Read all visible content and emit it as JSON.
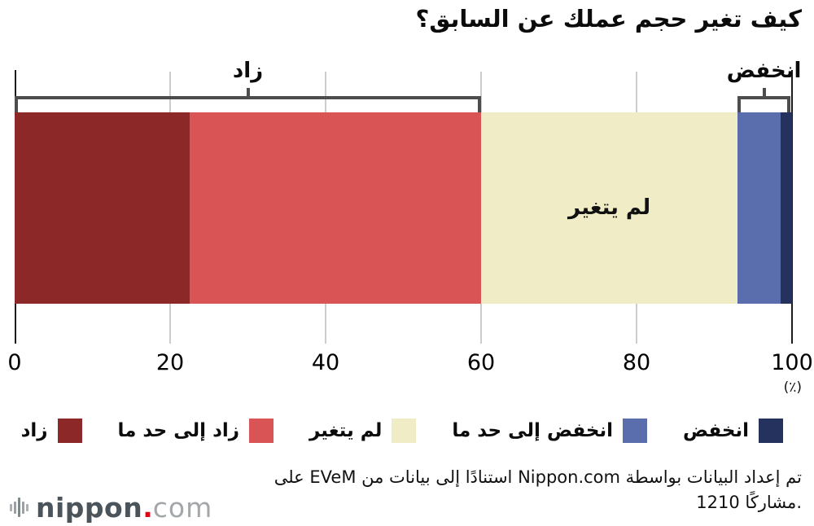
{
  "title": "كيف تغير حجم عملك عن السابق؟",
  "chart_data": {
    "type": "bar",
    "orientation": "horizontal-stacked",
    "xlim": [
      0,
      100
    ],
    "x_ticks": [
      0,
      20,
      40,
      60,
      80,
      100
    ],
    "unit_label": "(٪)",
    "grid": true,
    "segments": [
      {
        "label": "زاد",
        "value": 22.5,
        "color": "#8c2828"
      },
      {
        "label": "زاد إلى حد ما",
        "value": 37.5,
        "color": "#d95555"
      },
      {
        "label": "لم يتغير",
        "value": 33.0,
        "color": "#f0edc6"
      },
      {
        "label": "انخفض إلى حد ما",
        "value": 5.5,
        "color": "#5a6dac"
      },
      {
        "label": "انخفض",
        "value": 1.5,
        "color": "#26325e"
      }
    ],
    "bar_inner_label": "لم يتغير",
    "brackets": [
      {
        "label": "زاد",
        "from": 0,
        "to": 60
      },
      {
        "label": "انخفض",
        "from": 93,
        "to": 99.8
      }
    ],
    "legend_position": "bottom"
  },
  "legend": {
    "items_rtl_order": [
      {
        "label": "انخفض",
        "color": "#26325e"
      },
      {
        "label": "انخفض إلى حد ما",
        "color": "#5a6dac"
      },
      {
        "label": "لم يتغير",
        "color": "#f0edc6"
      },
      {
        "label": "زاد إلى حد ما",
        "color": "#d95555"
      },
      {
        "label": "زاد",
        "color": "#8c2828"
      }
    ]
  },
  "footer": {
    "line1": "تم إعداد البيانات بواسطة Nippon.com استنادًا إلى بيانات من EVeM على",
    "line2": "1210 مشاركًا."
  },
  "logo": {
    "icon": "soundwave-icon",
    "name": "nippon",
    "dot": ".",
    "tld": "com",
    "dot_color": "#e60012"
  },
  "colors": {
    "axis": "#1c1c1c",
    "gridline": "#cccccc",
    "bracket": "#4d4d4d",
    "text": "#0b0b0b"
  }
}
